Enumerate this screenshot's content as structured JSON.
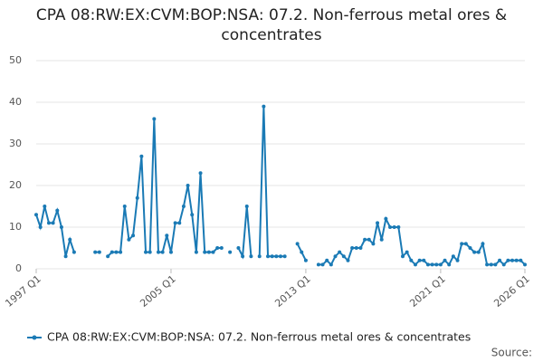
{
  "chart_data": {
    "type": "line",
    "title": "CPA 08:RW:EX:CVM:BOP:NSA: 07.2. Non-ferrous metal ores & concentrates",
    "categories": [
      "1997 Q1",
      null,
      null,
      null,
      null,
      null,
      null,
      null,
      null,
      null,
      null,
      null,
      null,
      null,
      null,
      null,
      null,
      null,
      null,
      null,
      null,
      null,
      null,
      null,
      null,
      null,
      null,
      null,
      null,
      null,
      null,
      null,
      "2005 Q1",
      null,
      null,
      null,
      null,
      null,
      null,
      null,
      null,
      null,
      null,
      null,
      null,
      null,
      null,
      null,
      null,
      null,
      null,
      null,
      null,
      null,
      null,
      null,
      null,
      null,
      null,
      null,
      null,
      null,
      null,
      null,
      "2013 Q1",
      null,
      null,
      null,
      null,
      null,
      null,
      null,
      null,
      null,
      null,
      null,
      null,
      null,
      null,
      null,
      null,
      null,
      null,
      null,
      null,
      null,
      null,
      null,
      null,
      null,
      null,
      null,
      null,
      null,
      null,
      null,
      "2021 Q1",
      null,
      null,
      null,
      null,
      null,
      null,
      null,
      null,
      null,
      null,
      null,
      null,
      null,
      null,
      null,
      null,
      null,
      null,
      null,
      "2026 Q1"
    ],
    "series": [
      {
        "name": "CPA 08:RW:EX:CVM:BOP:NSA: 07.2. Non-ferrous metal ores & concentrates",
        "color": "#1a7ab5",
        "values": [
          13,
          10,
          15,
          11,
          11,
          14,
          10,
          3,
          7,
          4,
          null,
          null,
          null,
          null,
          4,
          4,
          null,
          3,
          4,
          4,
          4,
          15,
          7,
          8,
          17,
          27,
          4,
          4,
          36,
          4,
          4,
          8,
          4,
          11,
          11,
          15,
          20,
          13,
          4,
          23,
          4,
          4,
          4,
          5,
          5,
          null,
          4,
          null,
          5,
          3,
          15,
          3,
          null,
          3,
          39,
          3,
          3,
          3,
          3,
          3,
          null,
          null,
          6,
          4,
          2,
          null,
          null,
          1,
          1,
          2,
          1,
          3,
          4,
          3,
          2,
          5,
          5,
          5,
          7,
          7,
          6,
          11,
          7,
          12,
          10,
          10,
          10,
          3,
          4,
          2,
          1,
          2,
          2,
          1,
          1,
          1,
          1,
          2,
          1,
          3,
          2,
          6,
          6,
          5,
          4,
          4,
          6,
          1,
          1,
          1,
          2,
          1,
          2,
          2,
          2,
          2,
          1
        ]
      }
    ],
    "ylim": [
      0,
      50
    ],
    "yticks": [
      0,
      10,
      20,
      30,
      40,
      50
    ],
    "grid": true,
    "legend": "bottom",
    "source": "Source:"
  }
}
